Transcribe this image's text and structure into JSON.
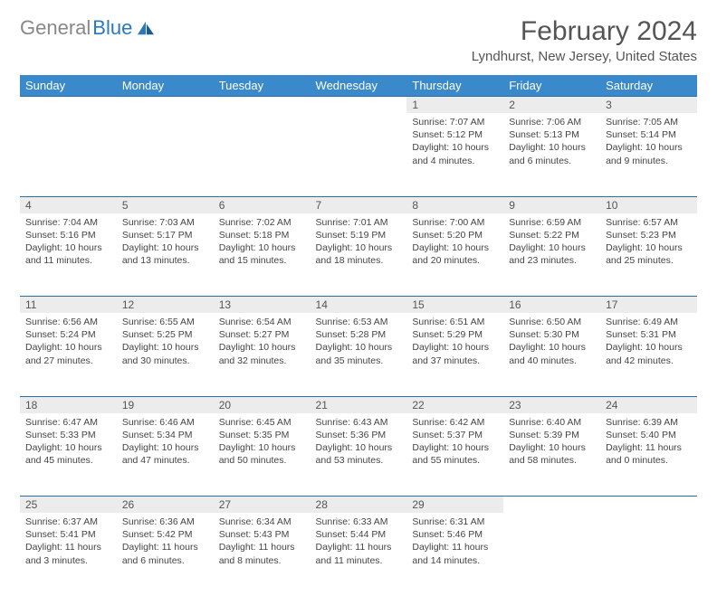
{
  "logo": {
    "part1": "General",
    "part2": "Blue"
  },
  "title": "February 2024",
  "location": "Lyndhurst, New Jersey, United States",
  "colors": {
    "header_bg": "#3a8acb",
    "header_text": "#ffffff",
    "daynum_bg": "#ececec",
    "row_divider": "#2a6ea8",
    "logo_gray": "#888888",
    "logo_blue": "#2a7ab8",
    "text": "#444444",
    "title_color": "#555555",
    "background": "#ffffff"
  },
  "typography": {
    "title_fontsize": 30,
    "location_fontsize": 15,
    "dayhead_fontsize": 13,
    "daynum_fontsize": 12,
    "cell_fontsize": 10.5
  },
  "day_names": [
    "Sunday",
    "Monday",
    "Tuesday",
    "Wednesday",
    "Thursday",
    "Friday",
    "Saturday"
  ],
  "weeks": [
    [
      null,
      null,
      null,
      null,
      {
        "n": "1",
        "sunrise": "7:07 AM",
        "sunset": "5:12 PM",
        "daylight": "10 hours and 4 minutes."
      },
      {
        "n": "2",
        "sunrise": "7:06 AM",
        "sunset": "5:13 PM",
        "daylight": "10 hours and 6 minutes."
      },
      {
        "n": "3",
        "sunrise": "7:05 AM",
        "sunset": "5:14 PM",
        "daylight": "10 hours and 9 minutes."
      }
    ],
    [
      {
        "n": "4",
        "sunrise": "7:04 AM",
        "sunset": "5:16 PM",
        "daylight": "10 hours and 11 minutes."
      },
      {
        "n": "5",
        "sunrise": "7:03 AM",
        "sunset": "5:17 PM",
        "daylight": "10 hours and 13 minutes."
      },
      {
        "n": "6",
        "sunrise": "7:02 AM",
        "sunset": "5:18 PM",
        "daylight": "10 hours and 15 minutes."
      },
      {
        "n": "7",
        "sunrise": "7:01 AM",
        "sunset": "5:19 PM",
        "daylight": "10 hours and 18 minutes."
      },
      {
        "n": "8",
        "sunrise": "7:00 AM",
        "sunset": "5:20 PM",
        "daylight": "10 hours and 20 minutes."
      },
      {
        "n": "9",
        "sunrise": "6:59 AM",
        "sunset": "5:22 PM",
        "daylight": "10 hours and 23 minutes."
      },
      {
        "n": "10",
        "sunrise": "6:57 AM",
        "sunset": "5:23 PM",
        "daylight": "10 hours and 25 minutes."
      }
    ],
    [
      {
        "n": "11",
        "sunrise": "6:56 AM",
        "sunset": "5:24 PM",
        "daylight": "10 hours and 27 minutes."
      },
      {
        "n": "12",
        "sunrise": "6:55 AM",
        "sunset": "5:25 PM",
        "daylight": "10 hours and 30 minutes."
      },
      {
        "n": "13",
        "sunrise": "6:54 AM",
        "sunset": "5:27 PM",
        "daylight": "10 hours and 32 minutes."
      },
      {
        "n": "14",
        "sunrise": "6:53 AM",
        "sunset": "5:28 PM",
        "daylight": "10 hours and 35 minutes."
      },
      {
        "n": "15",
        "sunrise": "6:51 AM",
        "sunset": "5:29 PM",
        "daylight": "10 hours and 37 minutes."
      },
      {
        "n": "16",
        "sunrise": "6:50 AM",
        "sunset": "5:30 PM",
        "daylight": "10 hours and 40 minutes."
      },
      {
        "n": "17",
        "sunrise": "6:49 AM",
        "sunset": "5:31 PM",
        "daylight": "10 hours and 42 minutes."
      }
    ],
    [
      {
        "n": "18",
        "sunrise": "6:47 AM",
        "sunset": "5:33 PM",
        "daylight": "10 hours and 45 minutes."
      },
      {
        "n": "19",
        "sunrise": "6:46 AM",
        "sunset": "5:34 PM",
        "daylight": "10 hours and 47 minutes."
      },
      {
        "n": "20",
        "sunrise": "6:45 AM",
        "sunset": "5:35 PM",
        "daylight": "10 hours and 50 minutes."
      },
      {
        "n": "21",
        "sunrise": "6:43 AM",
        "sunset": "5:36 PM",
        "daylight": "10 hours and 53 minutes."
      },
      {
        "n": "22",
        "sunrise": "6:42 AM",
        "sunset": "5:37 PM",
        "daylight": "10 hours and 55 minutes."
      },
      {
        "n": "23",
        "sunrise": "6:40 AM",
        "sunset": "5:39 PM",
        "daylight": "10 hours and 58 minutes."
      },
      {
        "n": "24",
        "sunrise": "6:39 AM",
        "sunset": "5:40 PM",
        "daylight": "11 hours and 0 minutes."
      }
    ],
    [
      {
        "n": "25",
        "sunrise": "6:37 AM",
        "sunset": "5:41 PM",
        "daylight": "11 hours and 3 minutes."
      },
      {
        "n": "26",
        "sunrise": "6:36 AM",
        "sunset": "5:42 PM",
        "daylight": "11 hours and 6 minutes."
      },
      {
        "n": "27",
        "sunrise": "6:34 AM",
        "sunset": "5:43 PM",
        "daylight": "11 hours and 8 minutes."
      },
      {
        "n": "28",
        "sunrise": "6:33 AM",
        "sunset": "5:44 PM",
        "daylight": "11 hours and 11 minutes."
      },
      {
        "n": "29",
        "sunrise": "6:31 AM",
        "sunset": "5:46 PM",
        "daylight": "11 hours and 14 minutes."
      },
      null,
      null
    ]
  ],
  "labels": {
    "sunrise": "Sunrise:",
    "sunset": "Sunset:",
    "daylight": "Daylight:"
  }
}
